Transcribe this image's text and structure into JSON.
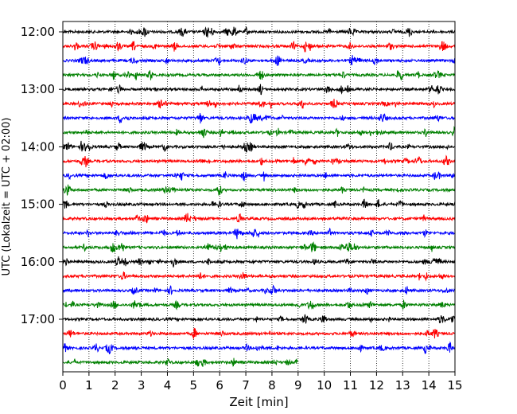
{
  "chart_data": {
    "type": "line",
    "title": "",
    "xlabel": "Zeit  [min]",
    "ylabel": "UTC (Lokalzeit = UTC + 02:00)",
    "xlim": [
      0,
      15
    ],
    "x_ticks": [
      "0",
      "1",
      "2",
      "3",
      "4",
      "5",
      "6",
      "7",
      "8",
      "9",
      "10",
      "11",
      "12",
      "13",
      "14",
      "15"
    ],
    "y_ticks": [
      "12:00",
      "13:00",
      "14:00",
      "15:00",
      "16:00",
      "17:00"
    ],
    "grid": "vertical dotted lines at each minute",
    "trace_interval_min": 15,
    "traces_per_hour": 4,
    "colors": [
      "#000000",
      "#ff0000",
      "#0000ff",
      "#008000"
    ],
    "traces": [
      {
        "start": "12:00",
        "color": "#000000",
        "x_end": 15
      },
      {
        "start": "12:15",
        "color": "#ff0000",
        "x_end": 15
      },
      {
        "start": "12:30",
        "color": "#0000ff",
        "x_end": 15
      },
      {
        "start": "12:45",
        "color": "#008000",
        "x_end": 15
      },
      {
        "start": "13:00",
        "color": "#000000",
        "x_end": 15
      },
      {
        "start": "13:15",
        "color": "#ff0000",
        "x_end": 15
      },
      {
        "start": "13:30",
        "color": "#0000ff",
        "x_end": 15
      },
      {
        "start": "13:45",
        "color": "#008000",
        "x_end": 15
      },
      {
        "start": "14:00",
        "color": "#000000",
        "x_end": 15
      },
      {
        "start": "14:15",
        "color": "#ff0000",
        "x_end": 15
      },
      {
        "start": "14:30",
        "color": "#0000ff",
        "x_end": 15
      },
      {
        "start": "14:45",
        "color": "#008000",
        "x_end": 15
      },
      {
        "start": "15:00",
        "color": "#000000",
        "x_end": 15
      },
      {
        "start": "15:15",
        "color": "#ff0000",
        "x_end": 15
      },
      {
        "start": "15:30",
        "color": "#0000ff",
        "x_end": 15
      },
      {
        "start": "15:45",
        "color": "#008000",
        "x_end": 15
      },
      {
        "start": "16:00",
        "color": "#000000",
        "x_end": 15
      },
      {
        "start": "16:15",
        "color": "#ff0000",
        "x_end": 15
      },
      {
        "start": "16:30",
        "color": "#0000ff",
        "x_end": 15
      },
      {
        "start": "16:45",
        "color": "#008000",
        "x_end": 15
      },
      {
        "start": "17:00",
        "color": "#000000",
        "x_end": 15
      },
      {
        "start": "17:15",
        "color": "#ff0000",
        "x_end": 15
      },
      {
        "start": "17:30",
        "color": "#0000ff",
        "x_end": 15
      },
      {
        "start": "17:45",
        "color": "#008000",
        "x_end": 9
      }
    ]
  }
}
